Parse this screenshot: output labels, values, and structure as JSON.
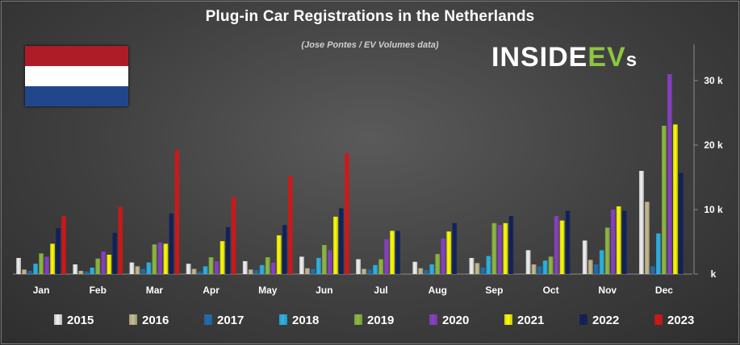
{
  "chart_data": {
    "type": "bar",
    "title": "Plug-in Car Registrations in the Netherlands",
    "subtitle": "(Jose Pontes / EV Volumes data)",
    "brand": "INSIDEEVs",
    "categories": [
      "Jan",
      "Feb",
      "Mar",
      "Apr",
      "May",
      "Jun",
      "Jul",
      "Aug",
      "Sep",
      "Oct",
      "Nov",
      "Dec"
    ],
    "y_ticks": [
      {
        "value": 0,
        "label": "k"
      },
      {
        "value": 10000,
        "label": "10 k"
      },
      {
        "value": 20000,
        "label": "20 k"
      },
      {
        "value": 30000,
        "label": "30 k"
      }
    ],
    "ylim": [
      0,
      35000
    ],
    "grid": false,
    "legend_position": "bottom",
    "series": [
      {
        "name": "2015",
        "color": "#f2f2f2",
        "values": [
          2500,
          1500,
          1800,
          1600,
          2000,
          2700,
          2300,
          1900,
          2500,
          3700,
          5200,
          16000
        ]
      },
      {
        "name": "2016",
        "color": "#c8bd8f",
        "values": [
          700,
          500,
          1200,
          800,
          700,
          900,
          800,
          900,
          1700,
          1500,
          2200,
          11200
        ]
      },
      {
        "name": "2017",
        "color": "#1f6fb4",
        "values": [
          500,
          400,
          800,
          400,
          600,
          800,
          700,
          600,
          1000,
          1200,
          1500,
          1200
        ]
      },
      {
        "name": "2018",
        "color": "#29b6ec",
        "values": [
          1600,
          1000,
          1800,
          1200,
          1400,
          2500,
          1400,
          1500,
          2800,
          2100,
          3700,
          6300
        ]
      },
      {
        "name": "2019",
        "color": "#8fbc3f",
        "values": [
          3200,
          2400,
          4600,
          2600,
          2600,
          4500,
          2300,
          3100,
          7900,
          2700,
          7200,
          23000
        ]
      },
      {
        "name": "2020",
        "color": "#8a3fc8",
        "values": [
          2700,
          3500,
          4900,
          2000,
          1800,
          3700,
          5400,
          5500,
          7600,
          9000,
          10000,
          31000
        ]
      },
      {
        "name": "2021",
        "color": "#ffff00",
        "values": [
          4700,
          3000,
          4700,
          5100,
          6000,
          8900,
          6700,
          6600,
          7900,
          8300,
          10500,
          23200
        ]
      },
      {
        "name": "2022",
        "color": "#0d1f5c",
        "values": [
          7100,
          6400,
          9400,
          7300,
          7600,
          10200,
          6700,
          7900,
          9000,
          9800,
          9800,
          15700
        ]
      },
      {
        "name": "2023",
        "color": "#d81414",
        "values": [
          9000,
          10400,
          19200,
          12000,
          15200,
          18700,
          null,
          null,
          null,
          null,
          null,
          null
        ]
      }
    ]
  }
}
